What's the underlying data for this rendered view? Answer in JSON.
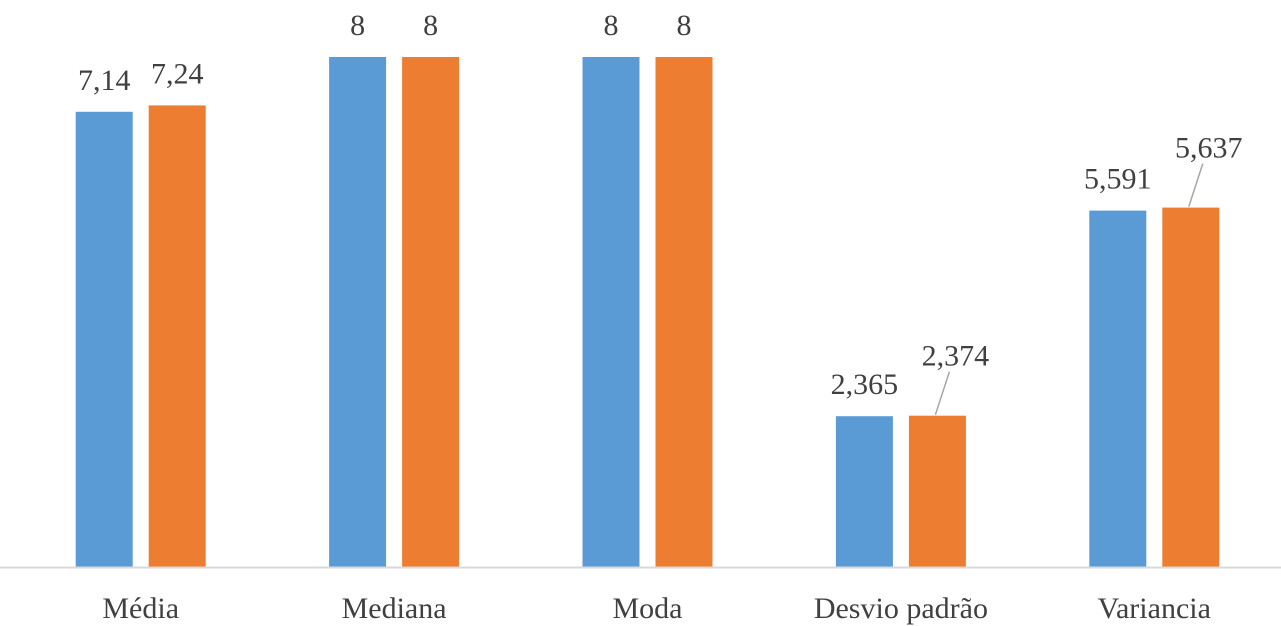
{
  "chart_data": {
    "type": "bar",
    "categories": [
      "Média",
      "Mediana",
      "Moda",
      "Desvio padrão",
      "Variancia"
    ],
    "series": [
      {
        "color": "#5B9BD5",
        "values": [
          7.14,
          8,
          8,
          2.365,
          5.591
        ],
        "labels": [
          "7,14",
          "8",
          "8",
          "2,365",
          "5,591"
        ]
      },
      {
        "color": "#ED7D31",
        "values": [
          7.24,
          8,
          8,
          2.374,
          5.637
        ],
        "labels": [
          "7,24",
          "8",
          "8",
          "2,374",
          "5,637"
        ]
      }
    ],
    "title": "",
    "xlabel": "",
    "ylabel": "",
    "ylim": [
      0,
      8
    ],
    "grid": false,
    "legend": "none",
    "axis_color": "#D9D9D9",
    "leader_line_color": "#A6A6A6",
    "label_color": "#404040"
  }
}
